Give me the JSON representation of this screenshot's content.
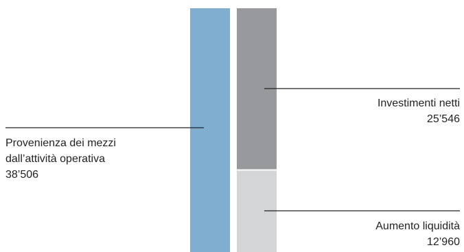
{
  "chart_data": {
    "type": "bar",
    "stacked": true,
    "grid": false,
    "legend": "none",
    "bars": [
      {
        "segments": [
          {
            "label": "Provenienza dei mezzi dall’attività operativa",
            "value": 38506,
            "value_text": "38’506",
            "color": "#80aed0"
          }
        ]
      },
      {
        "segments": [
          {
            "label": "Investimenti netti",
            "value": 25546,
            "value_text": "25’546",
            "color": "#97999c"
          },
          {
            "label": "Aumento liquidità",
            "value": 12960,
            "value_text": "12’960",
            "color": "#d4d5d6"
          }
        ]
      }
    ],
    "labels": {
      "source_line1": "Provenienza dei mezzi",
      "source_line2": "dall’attività operativa",
      "source_value": "38’506",
      "invest_name": "Investimenti netti",
      "invest_value": "25’546",
      "liquidity_name": "Aumento liquidità",
      "liquidity_value": "12’960"
    }
  }
}
